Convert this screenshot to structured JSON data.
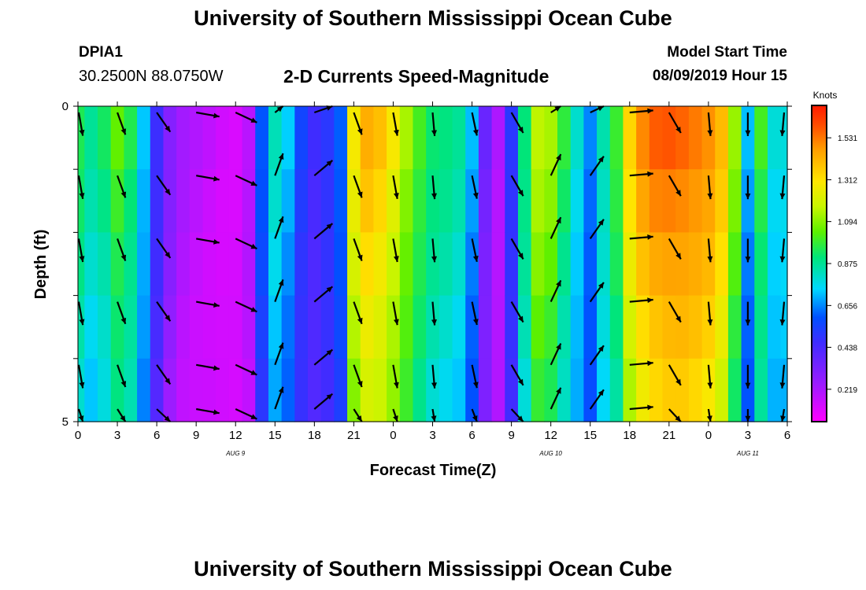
{
  "header": {
    "org_title": "University of Southern Mississippi Ocean Cube",
    "station_id": "DPIA1",
    "station_coords": "30.2500N 88.0750W",
    "chart_subtitle": "2-D Currents Speed-Magnitude",
    "model_start_label": "Model Start Time",
    "model_start_value": "08/09/2019 Hour 15"
  },
  "footer": {
    "org_title": "University of Southern Mississippi Ocean Cube"
  },
  "chart_data": {
    "type": "heatmap",
    "title": "2-D Currents Speed-Magnitude",
    "xlabel": "Forecast Time(Z)",
    "ylabel": "Depth (ft)",
    "x_ticks": [
      "0",
      "3",
      "6",
      "9",
      "12",
      "15",
      "18",
      "21",
      "0",
      "3",
      "6",
      "9",
      "12",
      "15",
      "18",
      "21",
      "0",
      "3",
      "6"
    ],
    "date_labels": [
      {
        "label": "AUG 9",
        "tick_index": 4
      },
      {
        "label": "AUG 10",
        "tick_index": 12
      },
      {
        "label": "AUG 11",
        "tick_index": 17
      }
    ],
    "y_ticks": [
      {
        "depth": 0,
        "label": "0"
      },
      {
        "depth": 1,
        "label": ""
      },
      {
        "depth": 2,
        "label": ""
      },
      {
        "depth": 3,
        "label": ""
      },
      {
        "depth": 4,
        "label": ""
      },
      {
        "depth": 5,
        "label": "5"
      }
    ],
    "ylim": [
      0,
      5
    ],
    "xlim_hours": [
      0,
      54
    ],
    "units_label": "Knots",
    "colorbar_ticks": [
      "1.531",
      "1.312",
      "1.094",
      "0.875",
      "0.656",
      "0.438",
      "0.219"
    ],
    "colorbar_tick_values": [
      1.531,
      1.312,
      1.094,
      0.875,
      0.656,
      0.438,
      0.219
    ],
    "speed_range": [
      0.05,
      1.7
    ],
    "depth_layers": 5,
    "speed_profile_by_hour": [
      [
        0,
        0.95
      ],
      [
        1,
        0.86
      ],
      [
        2,
        0.92
      ],
      [
        3,
        1.04
      ],
      [
        4,
        0.96
      ],
      [
        5,
        0.74
      ],
      [
        6,
        0.48
      ],
      [
        7,
        0.3
      ],
      [
        8,
        0.22
      ],
      [
        9,
        0.19
      ],
      [
        10,
        0.17
      ],
      [
        11,
        0.15
      ],
      [
        12,
        0.14
      ],
      [
        13,
        0.2
      ],
      [
        14,
        0.6
      ],
      [
        15,
        0.82
      ],
      [
        16,
        0.72
      ],
      [
        17,
        0.55
      ],
      [
        18,
        0.47
      ],
      [
        19,
        0.52
      ],
      [
        20,
        0.62
      ],
      [
        21,
        1.28
      ],
      [
        22,
        1.42
      ],
      [
        23,
        1.38
      ],
      [
        24,
        1.28
      ],
      [
        25,
        1.14
      ],
      [
        26,
        1.02
      ],
      [
        27,
        0.93
      ],
      [
        28,
        0.9
      ],
      [
        29,
        0.86
      ],
      [
        30,
        0.7
      ],
      [
        31,
        0.36
      ],
      [
        32,
        0.22
      ],
      [
        33,
        0.52
      ],
      [
        34,
        0.92
      ],
      [
        35,
        1.16
      ],
      [
        36,
        1.12
      ],
      [
        37,
        0.96
      ],
      [
        38,
        0.8
      ],
      [
        39,
        0.66
      ],
      [
        40,
        0.86
      ],
      [
        41,
        1.0
      ],
      [
        42,
        1.34
      ],
      [
        43,
        1.49
      ],
      [
        44,
        1.56
      ],
      [
        45,
        1.58
      ],
      [
        46,
        1.57
      ],
      [
        47,
        1.54
      ],
      [
        48,
        1.5
      ],
      [
        49,
        1.4
      ],
      [
        50,
        1.1
      ],
      [
        51,
        0.7
      ],
      [
        52,
        1.0
      ],
      [
        53,
        0.8
      ],
      [
        54,
        0.8
      ]
    ],
    "arrow_directions_deg_by_hour": [
      [
        0,
        170
      ],
      [
        3,
        160
      ],
      [
        6,
        145
      ],
      [
        9,
        100
      ],
      [
        12,
        115
      ],
      [
        15,
        20
      ],
      [
        18,
        50
      ],
      [
        21,
        160
      ],
      [
        24,
        170
      ],
      [
        27,
        175
      ],
      [
        30,
        168
      ],
      [
        33,
        150
      ],
      [
        36,
        25
      ],
      [
        39,
        35
      ],
      [
        42,
        85
      ],
      [
        45,
        150
      ],
      [
        48,
        175
      ],
      [
        51,
        180
      ],
      [
        54,
        185
      ]
    ]
  }
}
